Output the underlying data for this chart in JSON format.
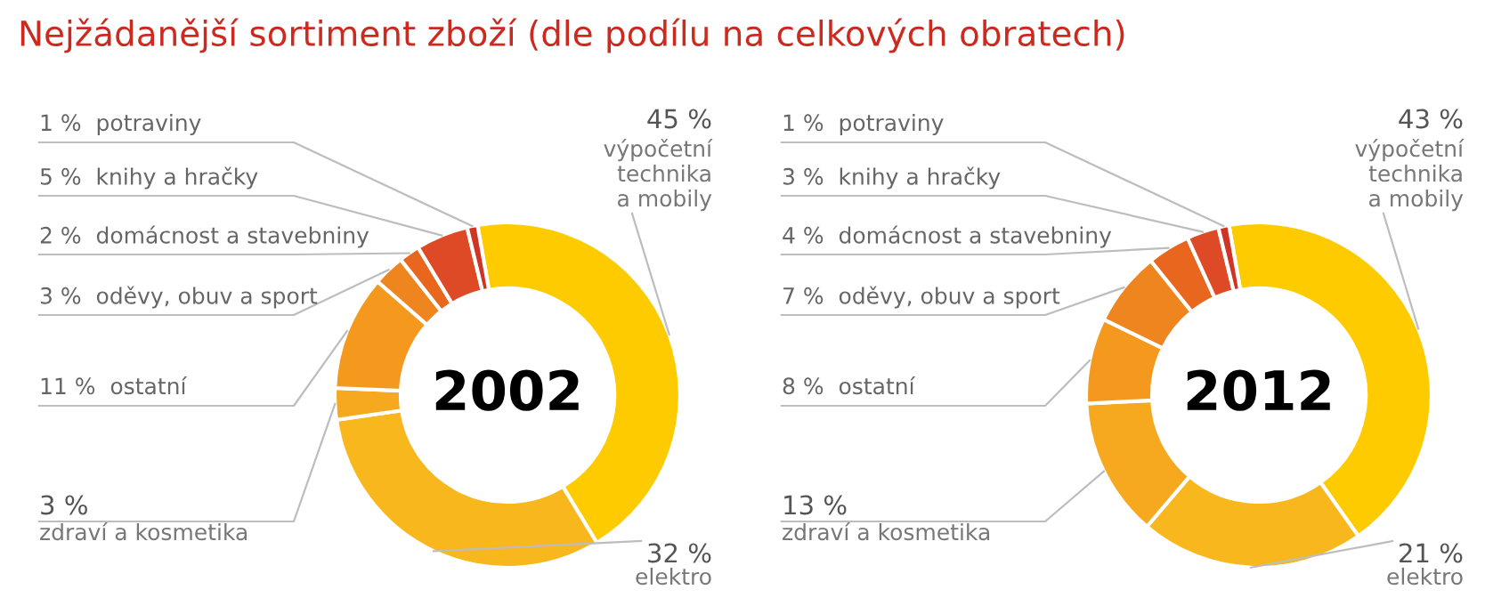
{
  "chart_data": [
    {
      "type": "donut",
      "title": "2002",
      "annotations": [
        "Nejžádanější sortiment zboží (dle podílu na celkových obratech)"
      ],
      "categories": [
        "výpočetní\ntechnika\na mobily",
        "elektro",
        "zdraví a kosmetika",
        "ostatní",
        "oděvy, obuv a sport",
        "domácnost a stavebniny",
        "knihy a hračky",
        "potraviny"
      ],
      "values": [
        45,
        32,
        3,
        11,
        3,
        2,
        5,
        1
      ],
      "value_labels": [
        "45 %",
        "32 %",
        "3 %",
        "11 %",
        "3 %",
        "2 %",
        "5 %",
        "1 %"
      ],
      "colors": [
        "#fecb00",
        "#f8b71c",
        "#f6a81e",
        "#f4991e",
        "#ef851f",
        "#e9661f",
        "#de4a25",
        "#cf3424"
      ]
    },
    {
      "type": "donut",
      "title": "2012",
      "categories": [
        "výpočetní\ntechnika\na mobily",
        "elektro",
        "zdraví a kosmetika",
        "ostatní",
        "oděvy, obuv a sport",
        "domácnost a stavebniny",
        "knihy a hračky",
        "potraviny"
      ],
      "values": [
        43,
        21,
        13,
        8,
        7,
        4,
        3,
        1
      ],
      "value_labels": [
        "43 %",
        "21 %",
        "13 %",
        "8 %",
        "7 %",
        "4 %",
        "3 %",
        "1 %"
      ],
      "colors": [
        "#fecb00",
        "#f8b71c",
        "#f6a81e",
        "#f4991e",
        "#ef851f",
        "#e9661f",
        "#de4a25",
        "#cf3424"
      ]
    }
  ]
}
